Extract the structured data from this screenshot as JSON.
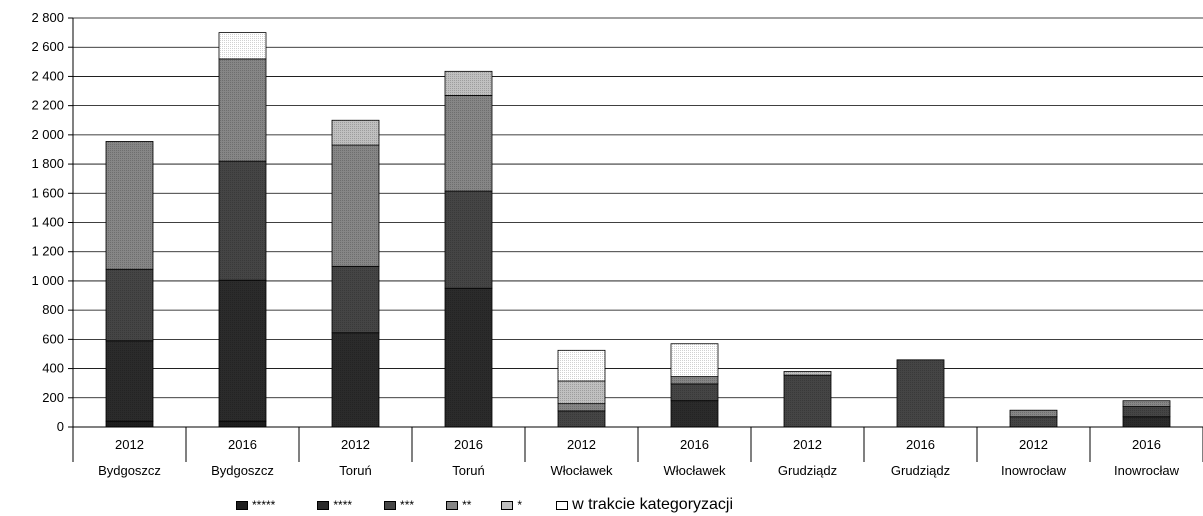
{
  "chart_data": {
    "type": "bar",
    "stacked": true,
    "ylim": [
      0,
      2800
    ],
    "y_ticks": [
      "0",
      "200",
      "400",
      "600",
      "800",
      "1 000",
      "1 200",
      "1 400",
      "1 600",
      "1 800",
      "2 000",
      "2 200",
      "2 400",
      "2 600",
      "2 800"
    ],
    "grid": true,
    "legend_position": "bottom",
    "categories": [
      {
        "year": "2012",
        "city": "Bydgoszcz"
      },
      {
        "year": "2016",
        "city": "Bydgoszcz"
      },
      {
        "year": "2012",
        "city": "Toruń"
      },
      {
        "year": "2016",
        "city": "Toruń"
      },
      {
        "year": "2012",
        "city": "Włocławek"
      },
      {
        "year": "2016",
        "city": "Włocławek"
      },
      {
        "year": "2012",
        "city": "Grudziądz"
      },
      {
        "year": "2016",
        "city": "Grudziądz"
      },
      {
        "year": "2012",
        "city": "Inowrocław"
      },
      {
        "year": "2016",
        "city": "Inowrocław"
      }
    ],
    "series": [
      {
        "name": "*****",
        "color": "#1e1e1e",
        "values": [
          40,
          40,
          0,
          0,
          0,
          0,
          0,
          0,
          0,
          0
        ]
      },
      {
        "name": "****",
        "color": "#2b2b2b",
        "values": [
          550,
          965,
          645,
          950,
          0,
          180,
          0,
          0,
          0,
          70
        ]
      },
      {
        "name": "***",
        "color": "#454545",
        "values": [
          490,
          815,
          455,
          665,
          110,
          115,
          355,
          460,
          70,
          70
        ]
      },
      {
        "name": "**",
        "color": "#868686",
        "values": [
          875,
          700,
          830,
          655,
          50,
          50,
          0,
          0,
          45,
          40
        ]
      },
      {
        "name": "*",
        "color": "#c0c0c0",
        "values": [
          0,
          0,
          170,
          165,
          155,
          0,
          25,
          0,
          0,
          0
        ]
      },
      {
        "name": "w trakcie kategoryzacji",
        "color": "#ffffff",
        "values": [
          0,
          180,
          0,
          0,
          210,
          225,
          0,
          0,
          0,
          0
        ]
      }
    ]
  }
}
